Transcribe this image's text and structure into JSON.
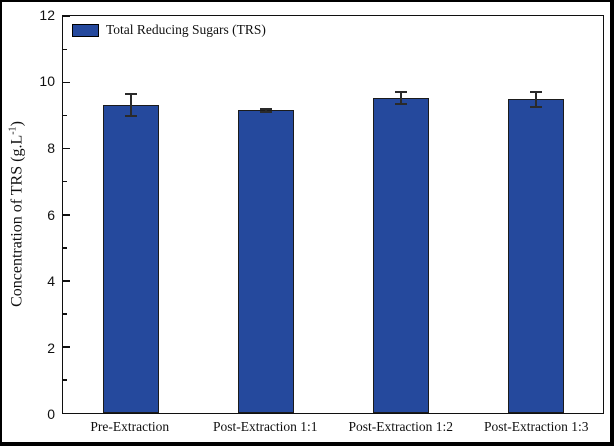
{
  "figure": {
    "background_color": "#ffffff",
    "outer_border_color": "#000000",
    "axis_frame_color": "#101010"
  },
  "chart_data": {
    "type": "bar",
    "title": "",
    "xlabel": "",
    "ylabel": "Concentration of TRS (g.L⁻¹)",
    "ylabel_parts": {
      "main": "Concentration of TRS (g.L",
      "sup": "-1",
      "end": ")"
    },
    "categories": [
      "Pre-Extraction",
      "Post-Extraction 1:1",
      "Post-Extraction 1:2",
      "Post-Extraction 1:3"
    ],
    "series": [
      {
        "name": "Total Reducing Sugars (TRS)",
        "values": [
          9.3,
          9.15,
          9.52,
          9.48
        ],
        "errors": [
          0.33,
          0.05,
          0.17,
          0.22
        ]
      }
    ],
    "ylim": [
      0,
      12
    ],
    "ytick_values": [
      0,
      2,
      4,
      6,
      8,
      10,
      12
    ],
    "minor_tick_values": [
      1,
      3,
      5,
      7,
      9,
      11
    ],
    "grid": "off",
    "legend_position": "top-left",
    "bar_color": "#25499D",
    "bar_edge_color": "#1b1b1b",
    "error_bar_color": "#2a2a2a"
  }
}
